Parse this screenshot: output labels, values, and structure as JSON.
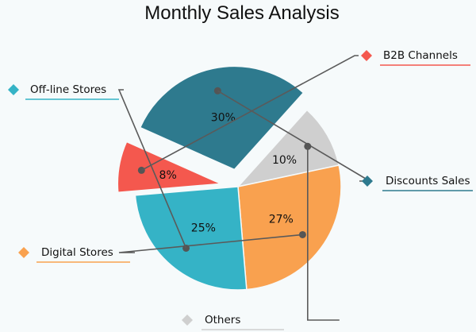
{
  "chart_data": {
    "type": "pie",
    "title": "Monthly Sales Analysis",
    "slices": [
      {
        "label": "Discounts Sales",
        "value": 30,
        "display": "30%",
        "color": "#2e7a8e",
        "exploded": true
      },
      {
        "label": "Others",
        "value": 10,
        "display": "10%",
        "color": "#cfcfcf",
        "exploded": false
      },
      {
        "label": "Digital Stores",
        "value": 27,
        "display": "27%",
        "color": "#f9a14f",
        "exploded": false
      },
      {
        "label": "Off-line Stores",
        "value": 25,
        "display": "25%",
        "color": "#35b3c6",
        "exploded": false
      },
      {
        "label": "B2B Channels",
        "value": 8,
        "display": "8%",
        "color": "#f4584e",
        "exploded": true
      }
    ]
  }
}
